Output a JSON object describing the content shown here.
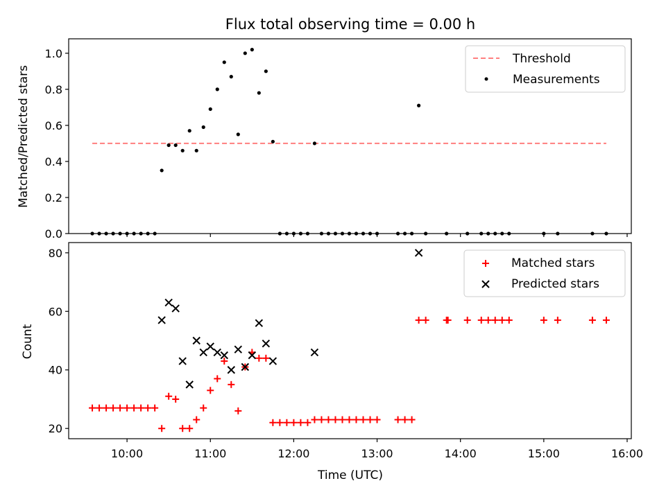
{
  "chart_data": [
    {
      "type": "scatter",
      "title": "Flux total observing time = 0.00 h",
      "xlabel": "",
      "ylabel": "Matched/Predicted stars",
      "xlim": [
        "09:18",
        "16:03"
      ],
      "ylim": [
        0,
        1.08
      ],
      "x_ticks": [
        "10:00",
        "11:00",
        "12:00",
        "13:00",
        "14:00",
        "15:00",
        "16:00"
      ],
      "x_tick_labels_shown": false,
      "y_ticks": [
        "0.0",
        "0.2",
        "0.4",
        "0.6",
        "0.8",
        "1.0"
      ],
      "grid": false,
      "legend_position": "top-right",
      "threshold": {
        "name": "Threshold",
        "value": 0.5,
        "x_range": [
          "09:35",
          "15:45"
        ],
        "color": "#ff7f7f",
        "style": "dashed"
      },
      "series": [
        {
          "name": "Measurements",
          "color": "#000000",
          "marker": "dot",
          "points": [
            [
              "09:35",
              0
            ],
            [
              "09:40",
              0
            ],
            [
              "09:45",
              0
            ],
            [
              "09:50",
              0
            ],
            [
              "09:55",
              0
            ],
            [
              "10:00",
              0
            ],
            [
              "10:05",
              0
            ],
            [
              "10:10",
              0
            ],
            [
              "10:15",
              0
            ],
            [
              "10:20",
              0
            ],
            [
              "10:25",
              0.35
            ],
            [
              "10:30",
              0.49
            ],
            [
              "10:35",
              0.49
            ],
            [
              "10:40",
              0.46
            ],
            [
              "10:45",
              0.57
            ],
            [
              "10:50",
              0.46
            ],
            [
              "10:55",
              0.59
            ],
            [
              "11:00",
              0.69
            ],
            [
              "11:05",
              0.8
            ],
            [
              "11:10",
              0.95
            ],
            [
              "11:15",
              0.87
            ],
            [
              "11:20",
              0.55
            ],
            [
              "11:25",
              1.0
            ],
            [
              "11:30",
              1.02
            ],
            [
              "11:35",
              0.78
            ],
            [
              "11:40",
              0.9
            ],
            [
              "11:45",
              0.51
            ],
            [
              "11:50",
              0
            ],
            [
              "11:55",
              0
            ],
            [
              "12:00",
              0
            ],
            [
              "12:05",
              0
            ],
            [
              "12:10",
              0
            ],
            [
              "12:15",
              0.5
            ],
            [
              "12:20",
              0
            ],
            [
              "12:25",
              0
            ],
            [
              "12:30",
              0
            ],
            [
              "12:35",
              0
            ],
            [
              "12:40",
              0
            ],
            [
              "12:45",
              0
            ],
            [
              "12:50",
              0
            ],
            [
              "12:55",
              0
            ],
            [
              "13:00",
              0
            ],
            [
              "13:15",
              0
            ],
            [
              "13:20",
              0
            ],
            [
              "13:25",
              0
            ],
            [
              "13:30",
              0.71
            ],
            [
              "13:35",
              0
            ],
            [
              "13:50",
              0
            ],
            [
              "14:05",
              0
            ],
            [
              "14:15",
              0
            ],
            [
              "14:20",
              0
            ],
            [
              "14:25",
              0
            ],
            [
              "14:30",
              0
            ],
            [
              "14:35",
              0
            ],
            [
              "15:00",
              0
            ],
            [
              "15:10",
              0
            ],
            [
              "15:35",
              0
            ],
            [
              "15:45",
              0
            ]
          ]
        }
      ]
    },
    {
      "type": "scatter",
      "title": "",
      "xlabel": "Time (UTC)",
      "ylabel": "Count",
      "xlim": [
        "09:18",
        "16:03"
      ],
      "ylim": [
        16.5,
        83.5
      ],
      "x_ticks": [
        "10:00",
        "11:00",
        "12:00",
        "13:00",
        "14:00",
        "15:00",
        "16:00"
      ],
      "y_ticks": [
        "20",
        "40",
        "60",
        "80"
      ],
      "grid": false,
      "legend_position": "top-right",
      "series": [
        {
          "name": "Matched stars",
          "color": "#ff0000",
          "marker": "plus",
          "points": [
            [
              "09:35",
              27
            ],
            [
              "09:40",
              27
            ],
            [
              "09:45",
              27
            ],
            [
              "09:50",
              27
            ],
            [
              "09:55",
              27
            ],
            [
              "10:00",
              27
            ],
            [
              "10:05",
              27
            ],
            [
              "10:10",
              27
            ],
            [
              "10:15",
              27
            ],
            [
              "10:20",
              27
            ],
            [
              "10:25",
              20
            ],
            [
              "10:30",
              31
            ],
            [
              "10:35",
              30
            ],
            [
              "10:40",
              20
            ],
            [
              "10:45",
              20
            ],
            [
              "10:50",
              23
            ],
            [
              "10:55",
              27
            ],
            [
              "11:00",
              33
            ],
            [
              "11:05",
              37
            ],
            [
              "11:10",
              43
            ],
            [
              "11:15",
              35
            ],
            [
              "11:20",
              26
            ],
            [
              "11:25",
              41
            ],
            [
              "11:30",
              46
            ],
            [
              "11:35",
              44
            ],
            [
              "11:40",
              44
            ],
            [
              "11:45",
              22
            ],
            [
              "11:50",
              22
            ],
            [
              "11:55",
              22
            ],
            [
              "12:00",
              22
            ],
            [
              "12:05",
              22
            ],
            [
              "12:10",
              22
            ],
            [
              "12:15",
              23
            ],
            [
              "12:20",
              23
            ],
            [
              "12:25",
              23
            ],
            [
              "12:30",
              23
            ],
            [
              "12:35",
              23
            ],
            [
              "12:40",
              23
            ],
            [
              "12:45",
              23
            ],
            [
              "12:50",
              23
            ],
            [
              "12:55",
              23
            ],
            [
              "13:00",
              23
            ],
            [
              "13:15",
              23
            ],
            [
              "13:20",
              23
            ],
            [
              "13:25",
              23
            ],
            [
              "13:30",
              57
            ],
            [
              "13:35",
              57
            ],
            [
              "13:50",
              57
            ],
            [
              "13:51",
              57
            ],
            [
              "14:05",
              57
            ],
            [
              "14:15",
              57
            ],
            [
              "14:20",
              57
            ],
            [
              "14:25",
              57
            ],
            [
              "14:30",
              57
            ],
            [
              "14:35",
              57
            ],
            [
              "15:00",
              57
            ],
            [
              "15:10",
              57
            ],
            [
              "15:35",
              57
            ],
            [
              "15:45",
              57
            ]
          ]
        },
        {
          "name": "Predicted stars",
          "color": "#000000",
          "marker": "x",
          "points": [
            [
              "10:25",
              57
            ],
            [
              "10:30",
              63
            ],
            [
              "10:35",
              61
            ],
            [
              "10:40",
              43
            ],
            [
              "10:45",
              35
            ],
            [
              "10:50",
              50
            ],
            [
              "10:55",
              46
            ],
            [
              "11:00",
              48
            ],
            [
              "11:05",
              46
            ],
            [
              "11:10",
              45
            ],
            [
              "11:15",
              40
            ],
            [
              "11:20",
              47
            ],
            [
              "11:25",
              41
            ],
            [
              "11:30",
              45
            ],
            [
              "11:35",
              56
            ],
            [
              "11:40",
              49
            ],
            [
              "11:45",
              43
            ],
            [
              "12:15",
              46
            ],
            [
              "13:30",
              80
            ]
          ]
        }
      ]
    }
  ]
}
